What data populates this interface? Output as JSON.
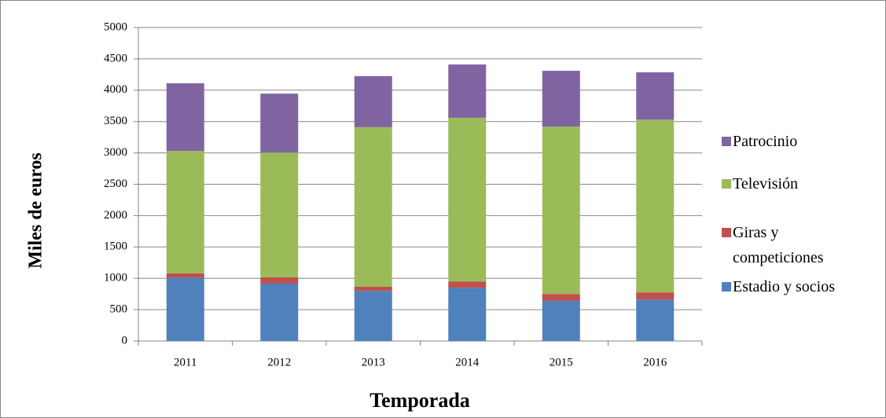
{
  "chart_data": {
    "type": "stacked_bar",
    "x_label": "Temporada",
    "y_label": "Miles  de euros",
    "categories": [
      "2011",
      "2012",
      "2013",
      "2014",
      "2015",
      "2016"
    ],
    "series": [
      {
        "name": "Estadio y socios",
        "color": "#4f81bd",
        "values": [
          1010,
          915,
          800,
          850,
          640,
          660
        ]
      },
      {
        "name": "Giras y competiciones",
        "color": "#c0504d",
        "values": [
          70,
          100,
          65,
          100,
          110,
          115
        ]
      },
      {
        "name": "Televisión",
        "color": "#9bbb59",
        "values": [
          1950,
          1990,
          2545,
          2610,
          2670,
          2755
        ]
      },
      {
        "name": "Patrocinio",
        "color": "#8064a2",
        "values": [
          1080,
          940,
          815,
          850,
          890,
          755
        ]
      }
    ],
    "ylim": [
      0,
      5000
    ],
    "yticks": [
      0,
      500,
      1000,
      1500,
      2000,
      2500,
      3000,
      3500,
      4000,
      4500,
      5000
    ],
    "grid": true,
    "legend": "right"
  }
}
